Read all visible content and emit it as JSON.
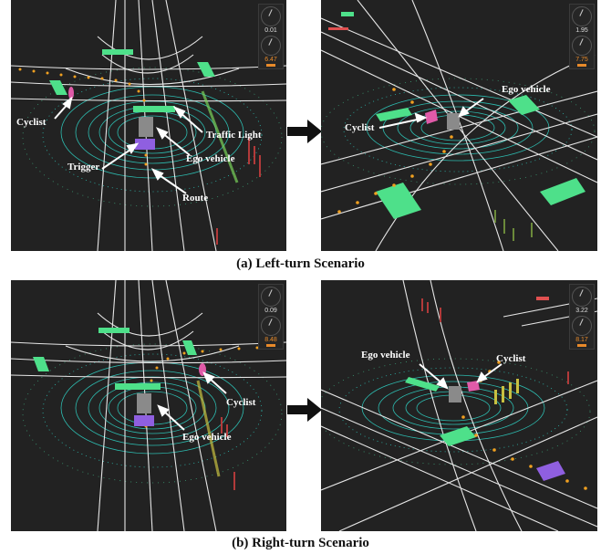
{
  "captions": {
    "a": "(a) Left-turn Scenario",
    "b": "(b) Right-turn Scenario"
  },
  "panels": {
    "a_left": {
      "hud": {
        "value_top": "0.01",
        "value_bottom": "6.47"
      },
      "labels": {
        "cyclist": "Cyclist",
        "traffic_light": "Traffic Light",
        "trigger": "Trigger",
        "ego_vehicle": "Ego vehicle",
        "route": "Route"
      }
    },
    "a_right": {
      "hud": {
        "value_top": "1.95",
        "value_bottom": "7.75"
      },
      "labels": {
        "cyclist": "Cyclist",
        "ego_vehicle": "Ego vehicle"
      }
    },
    "b_left": {
      "hud": {
        "value_top": "0.09",
        "value_bottom": "8.48"
      },
      "labels": {
        "cyclist": "Cyclist",
        "ego_vehicle": "Ego vehicle"
      }
    },
    "b_right": {
      "hud": {
        "value_top": "3.22",
        "value_bottom": "8.17"
      },
      "labels": {
        "cyclist": "Cyclist",
        "ego_vehicle": "Ego vehicle"
      }
    }
  },
  "colors": {
    "background": "#222222",
    "road_lines": "#e6e6e6",
    "lidar_rings": "#2fd6c8",
    "traffic_light": "#4ee08a",
    "cyclist": "#e05aa8",
    "trigger": "#8f5fe0",
    "route": "#f0a020",
    "ego_vehicle": "#8a8a8a"
  }
}
